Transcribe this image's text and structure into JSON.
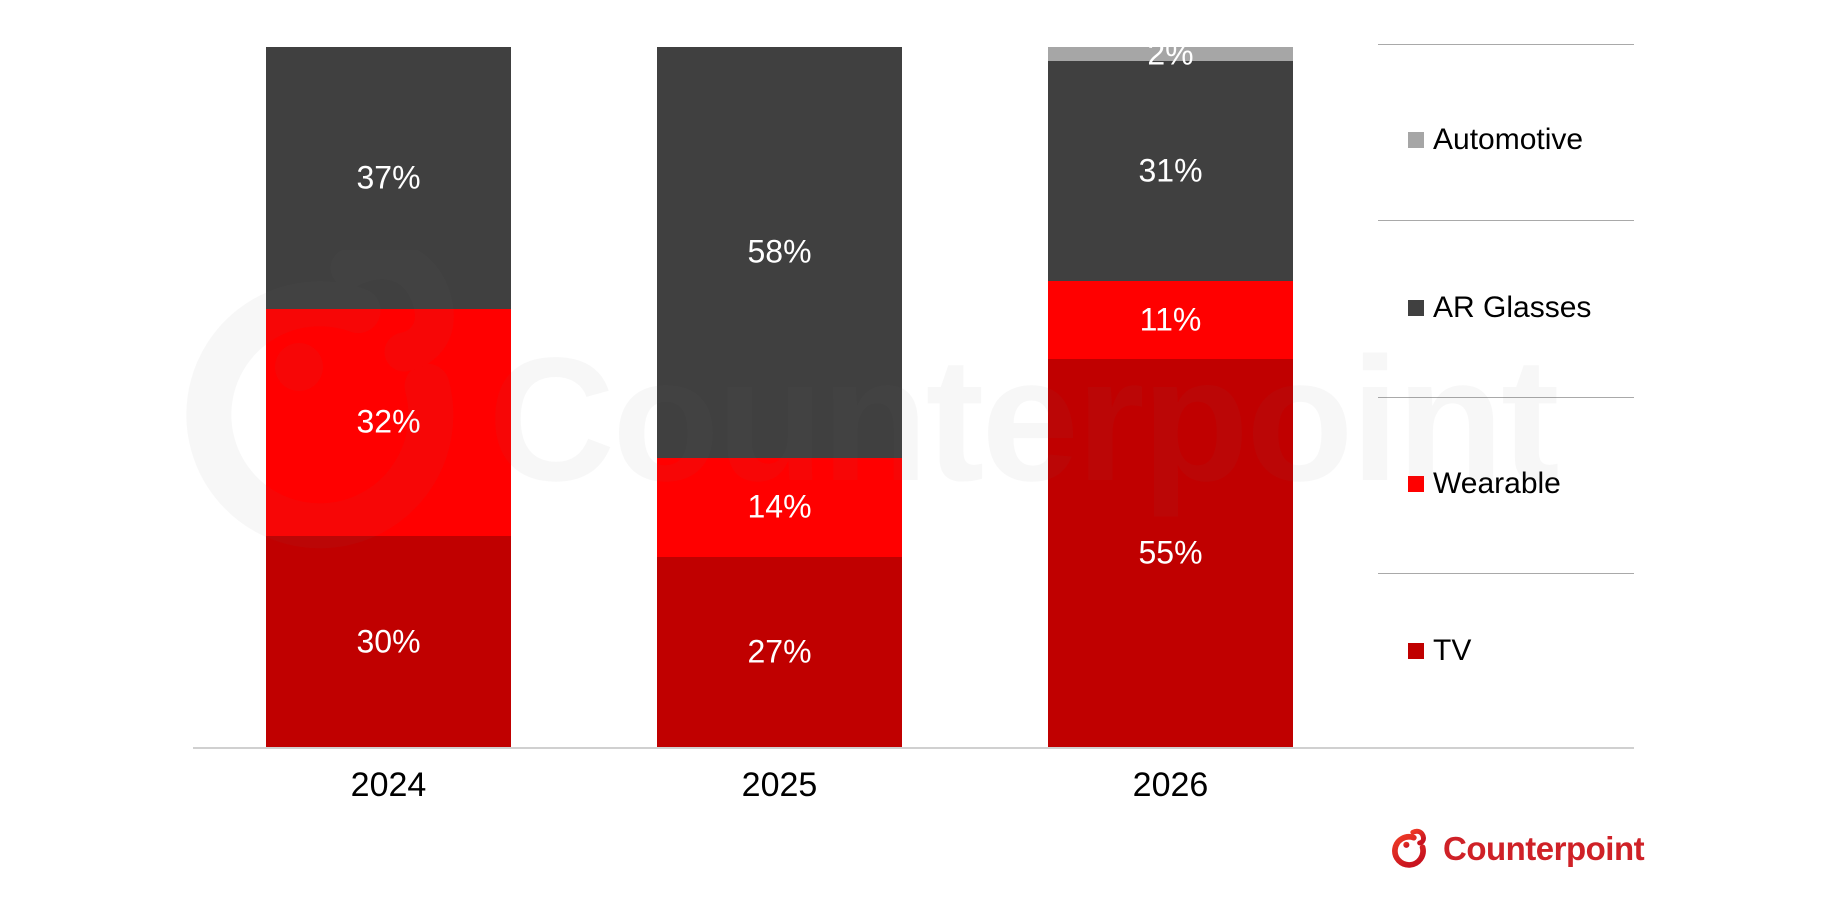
{
  "chart_data": {
    "type": "bar",
    "subtype": "stacked-percent",
    "unit": "%",
    "categories": [
      "2024",
      "2025",
      "2026"
    ],
    "series": [
      {
        "name": "TV",
        "color": "#c00000",
        "values": [
          30,
          27,
          55
        ]
      },
      {
        "name": "Wearable",
        "color": "#ff0000",
        "values": [
          32,
          14,
          11
        ]
      },
      {
        "name": "AR Glasses",
        "color": "#404040",
        "values": [
          37,
          58,
          31
        ]
      },
      {
        "name": "Automotive",
        "color": "#a6a6a6",
        "values": [
          0,
          0,
          2
        ]
      }
    ],
    "data_labels": {
      "2024": {
        "TV": "30%",
        "Wearable": "32%",
        "AR Glasses": "37%"
      },
      "2025": {
        "TV": "27%",
        "Wearable": "14%",
        "AR Glasses": "58%"
      },
      "2026": {
        "TV": "55%",
        "Wearable": "11%",
        "AR Glasses": "31%",
        "Automotive": "2%"
      }
    },
    "legend": {
      "position": "right",
      "items": [
        {
          "label": "Automotive",
          "color": "#a6a6a6"
        },
        {
          "label": "AR Glasses",
          "color": "#404040"
        },
        {
          "label": "Wearable",
          "color": "#ff0000"
        },
        {
          "label": "TV",
          "color": "#c00000"
        }
      ]
    },
    "grid": "off",
    "axis": {
      "x_labels": [
        "2024",
        "2025",
        "2026"
      ],
      "y_axis_visible": false
    }
  },
  "branding": {
    "watermark_text": "Counterpoint",
    "logo_text": "Counterpoint",
    "logo_color": "#cf2127"
  }
}
